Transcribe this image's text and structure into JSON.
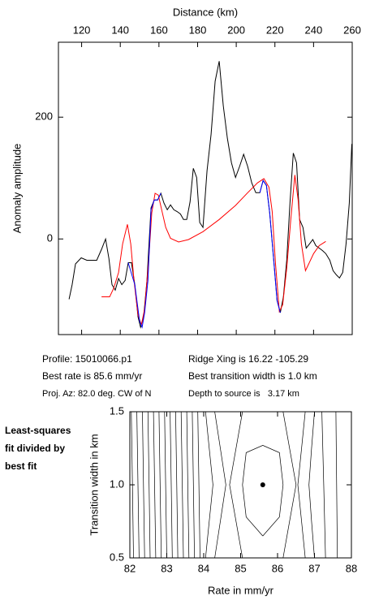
{
  "chart_data": [
    {
      "type": "line",
      "xlabel": "Distance (km)",
      "ylabel": "Anomaly amplitude",
      "xlim": [
        108,
        260
      ],
      "ylim": [
        -157,
        323
      ],
      "xticks": [
        120,
        140,
        160,
        180,
        200,
        220,
        240,
        260
      ],
      "yticks": [
        0,
        200
      ],
      "series": [
        {
          "color": "#000000",
          "x": [
            113.5,
            115.1,
            116.8,
            119.8,
            122.7,
            125.2,
            127.8,
            130.3,
            132.4,
            134.1,
            135.7,
            137.4,
            139.1,
            140.8,
            142.5,
            144.1,
            145.8,
            147.5,
            149.2,
            150.5,
            152.1,
            153.8,
            155.9,
            157.6,
            159.3,
            161.0,
            162.6,
            164.3,
            166.0,
            167.7,
            169.4,
            171.1,
            172.7,
            174.4,
            176.1,
            177.8,
            179.5,
            181.1,
            182.8,
            184.9,
            187.0,
            189.1,
            191.2,
            193.3,
            195.4,
            197.5,
            199.6,
            201.7,
            203.8,
            205.9,
            208.0,
            210.1,
            212.2,
            213.9,
            215.6,
            217.3,
            219.4,
            221.1,
            222.8,
            224.4,
            226.1,
            227.8,
            229.5,
            231.2,
            232.8,
            234.5,
            236.2,
            237.9,
            239.6,
            241.2,
            242.9,
            244.6,
            246.3,
            248.4,
            250.1,
            251.8,
            253.4,
            255.1,
            256.8,
            258.5,
            259.8
          ],
          "values": [
            -99,
            -75,
            -41,
            -31,
            -35,
            -35,
            -35,
            -17,
            0,
            -32,
            -75,
            -84,
            -65,
            -75,
            -68,
            -39,
            -39,
            -75,
            -128,
            -145,
            -128,
            -68,
            51,
            64,
            64,
            75,
            59,
            48,
            56,
            48,
            45,
            41,
            32,
            32,
            61,
            116,
            101,
            27,
            19,
            112,
            172,
            259,
            292,
            219,
            165,
            125,
            101,
            119,
            139,
            119,
            92,
            76,
            76,
            96,
            88,
            43,
            -35,
            -101,
            -121,
            -95,
            -35,
            59,
            141,
            125,
            32,
            19,
            -15,
            -8,
            -1,
            -11,
            -15,
            -19,
            -24,
            -35,
            -52,
            -59,
            -64,
            -55,
            -8,
            59,
            156
          ]
        },
        {
          "color": "#ff0000",
          "x": [
            130.3,
            134.5,
            136.6,
            139.1,
            141.2,
            143.7,
            145.4,
            147.1,
            149.2,
            150.9,
            152.6,
            154.7,
            156.3,
            158.0,
            159.7,
            161.4,
            163.5,
            166.0,
            170.2,
            175.3,
            182.8,
            191.2,
            199.6,
            205.9,
            211.0,
            214.3,
            216.9,
            218.6,
            220.3,
            222.3,
            224.0,
            226.1,
            228.2,
            230.3,
            232.0,
            233.7,
            235.8,
            237.5,
            240.0,
            242.9,
            246.3
          ],
          "values": [
            -95,
            -95,
            -81,
            -55,
            -8,
            24,
            -8,
            -68,
            -125,
            -141,
            -115,
            -35,
            43,
            75,
            72,
            48,
            19,
            1,
            -5,
            -1,
            12,
            32,
            55,
            76,
            92,
            99,
            85,
            45,
            -41,
            -119,
            -108,
            -48,
            32,
            105,
            65,
            -8,
            -52,
            -41,
            -24,
            -11,
            -4
          ]
        },
        {
          "color": "#0000ff",
          "x": [
            144.1,
            147.5,
            150.0,
            151.3,
            152.6,
            154.3,
            155.9,
            157.6,
            159.3,
            161.0,
            null,
            212.2,
            213.9,
            215.6,
            217.3,
            219.4,
            221.1,
            222.8
          ],
          "values": [
            -39,
            -75,
            -135,
            -145,
            -121,
            -68,
            48,
            64,
            64,
            75,
            null,
            76,
            96,
            88,
            43,
            -35,
            -101,
            -121
          ]
        }
      ]
    },
    {
      "type": "contour",
      "xlabel": "Rate in mm/yr",
      "ylabel": "Transition width in km",
      "xlim": [
        82,
        88
      ],
      "ylim": [
        0.5,
        1.5
      ],
      "xticks": [
        82,
        83,
        84,
        85,
        86,
        87,
        88
      ],
      "yticks": [
        0.5,
        {
          "value": 1.0,
          "label": "1.0"
        },
        1.5
      ],
      "contours": [
        {
          "rate": [
            82.1,
            82.07,
            82.04
          ],
          "width": [
            0.5,
            1.0,
            1.5
          ]
        },
        {
          "rate": [
            82.25,
            82.22,
            82.19
          ],
          "width": [
            0.5,
            1.0,
            1.5
          ]
        },
        {
          "rate": [
            82.4,
            82.37,
            82.34
          ],
          "width": [
            0.5,
            1.0,
            1.5
          ]
        },
        {
          "rate": [
            82.55,
            82.52,
            82.49
          ],
          "width": [
            0.5,
            1.0,
            1.5
          ]
        },
        {
          "rate": [
            82.7,
            82.67,
            82.64
          ],
          "width": [
            0.5,
            1.0,
            1.5
          ]
        },
        {
          "rate": [
            82.85,
            82.82,
            82.79
          ],
          "width": [
            0.5,
            1.0,
            1.5
          ]
        },
        {
          "rate": [
            83.0,
            82.97,
            82.94
          ],
          "width": [
            0.5,
            1.0,
            1.5
          ]
        },
        {
          "rate": [
            83.15,
            83.12,
            83.09
          ],
          "width": [
            0.5,
            1.0,
            1.5
          ]
        },
        {
          "rate": [
            83.3,
            83.27,
            83.24
          ],
          "width": [
            0.5,
            1.0,
            1.5
          ]
        },
        {
          "rate": [
            83.45,
            83.42,
            83.39
          ],
          "width": [
            0.5,
            1.0,
            1.5
          ]
        },
        {
          "rate": [
            83.6,
            83.57,
            83.54
          ],
          "width": [
            0.5,
            1.0,
            1.5
          ]
        },
        {
          "rate": [
            83.75,
            83.72,
            83.69
          ],
          "width": [
            0.5,
            1.0,
            1.5
          ]
        },
        {
          "rate": [
            83.9,
            83.87,
            83.84
          ],
          "width": [
            0.5,
            1.0,
            1.5
          ]
        },
        {
          "rate": [
            84.05,
            84.15,
            84.25,
            84.15,
            84.05
          ],
          "width": [
            0.5,
            0.75,
            1.0,
            1.25,
            1.5
          ]
        },
        {
          "rate": [
            84.3,
            84.45,
            84.6,
            84.45,
            84.3
          ],
          "width": [
            0.5,
            0.75,
            1.0,
            1.25,
            1.5
          ]
        },
        {
          "rate": [
            85.05,
            84.7,
            85.05,
            86.15,
            86.5,
            86.15,
            85.05
          ],
          "width": [
            0.5,
            1.0,
            1.5,
            1.5,
            1.0,
            0.5,
            0.5
          ]
        },
        {
          "rate": [
            85.6,
            86.05,
            86.15,
            86.05,
            85.6,
            85.15,
            85.05,
            85.15,
            85.6
          ],
          "width": [
            0.65,
            0.78,
            1.0,
            1.22,
            1.27,
            1.22,
            1.0,
            0.78,
            0.65
          ]
        },
        {
          "rate": [
            86.75,
            86.65,
            86.55,
            86.65,
            86.75
          ],
          "width": [
            0.5,
            0.75,
            1.0,
            1.25,
            1.5
          ]
        },
        {
          "rate": [
            87.0,
            86.92,
            86.85,
            86.92,
            87.0
          ],
          "width": [
            0.5,
            0.75,
            1.0,
            1.25,
            1.5
          ]
        },
        {
          "rate": [
            87.3,
            87.25,
            87.2
          ],
          "width": [
            0.5,
            1.0,
            1.5
          ]
        },
        {
          "rate": [
            87.62,
            87.6,
            87.58
          ],
          "width": [
            0.5,
            1.0,
            1.5
          ]
        }
      ],
      "best_fit": {
        "rate": 85.6,
        "width": 1.0
      }
    }
  ],
  "info": {
    "profile": "Profile: 15010066.p1",
    "ridge_crossing": "Ridge Xing is 16.22 -105.29",
    "best_rate": "Best rate is 85.6 mm/yr",
    "best_width": "Best transition width is 1.0 km",
    "projection": "Proj. Az: 82.0 deg. CW of N",
    "depth": "Depth to source is   3.17 km"
  },
  "side_note": [
    "Least-squares",
    "fit divided by",
    "best fit"
  ]
}
